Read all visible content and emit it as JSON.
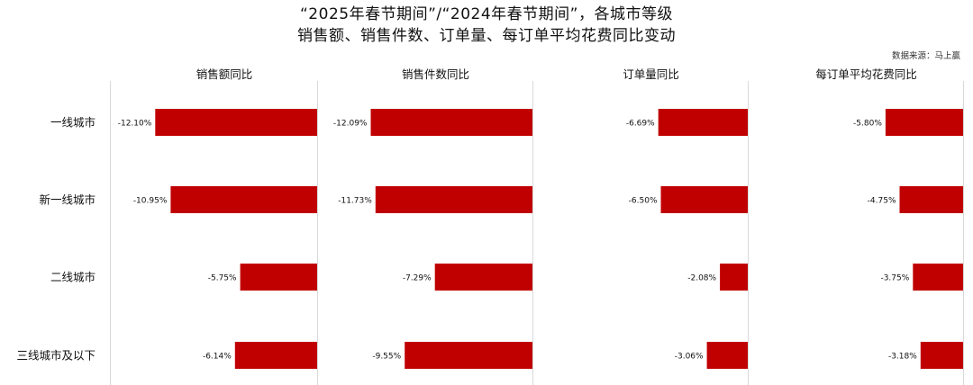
{
  "title_line1": "“2025年春节期间”/“2024年春节期间”，各城市等级",
  "title_line2": "销售额、销售件数、订单量、每订单平均花费同比变动",
  "source": "数据来源：马上赢",
  "colors": {
    "bar": "#c00000",
    "axis": "#d9d9d9",
    "text": "#111111"
  },
  "chart_data": {
    "type": "bar",
    "orientation": "horizontal",
    "categories": [
      "一线城市",
      "新一线城市",
      "二线城市",
      "三线城市及以下"
    ],
    "unit": "%",
    "panels": [
      {
        "name": "销售额同比",
        "values": [
          -12.1,
          -10.95,
          -5.75,
          -6.14
        ],
        "labels": [
          "-12.10%",
          "-10.95%",
          "-5.75%",
          "-6.14%"
        ]
      },
      {
        "name": "销售件数同比",
        "values": [
          -12.09,
          -11.73,
          -7.29,
          -9.55
        ],
        "labels": [
          "-12.09%",
          "-11.73%",
          "-7.29%",
          "-9.55%"
        ]
      },
      {
        "name": "订单量同比",
        "values": [
          -6.69,
          -6.5,
          -2.08,
          -3.06
        ],
        "labels": [
          "-6.69%",
          "-6.50%",
          "-2.08%",
          "-3.06%"
        ]
      },
      {
        "name": "每订单平均花费同比",
        "values": [
          -5.8,
          -4.75,
          -3.75,
          -3.18
        ],
        "labels": [
          "-5.80%",
          "-4.75%",
          "-3.75%",
          "-3.18%"
        ]
      }
    ]
  }
}
